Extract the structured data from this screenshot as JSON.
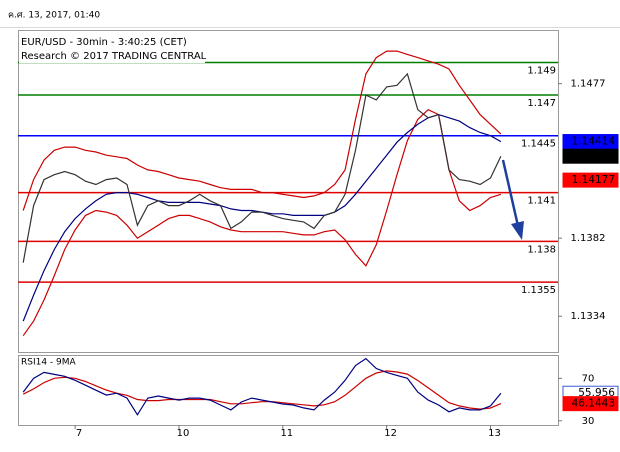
{
  "timestamp": "ค.ศ. 13, 2017, 01:40",
  "chart_data": [
    {
      "type": "line",
      "title": "EUR/USD - 30min - 3:40:25 (CET)",
      "subtitle": "Research © 2017 TRADING CENTRAL",
      "ylim": [
        1.1312,
        1.151
      ],
      "yticks": [
        1.1334,
        1.1382,
        1.1477
      ],
      "series": [
        {
          "color": "#cc0000",
          "values": [
            1.1399,
            1.1418,
            1.143,
            1.1436,
            1.1438,
            1.1438,
            1.1436,
            1.1435,
            1.1433,
            1.1432,
            1.1431,
            1.1427,
            1.1424,
            1.1423,
            1.1421,
            1.1419,
            1.1418,
            1.1417,
            1.1415,
            1.1413,
            1.1412,
            1.1412,
            1.1412,
            1.141,
            1.141,
            1.1409,
            1.1408,
            1.1407,
            1.1408,
            1.141,
            1.1415,
            1.1424,
            1.1455,
            1.1483,
            1.1493,
            1.1497,
            1.1497,
            1.1495,
            1.1493,
            1.1491,
            1.1489,
            1.1486,
            1.1476,
            1.1467,
            1.1458,
            1.1452,
            1.1446,
            null,
            null,
            null,
            null,
            null
          ]
        },
        {
          "color": "#cc0000",
          "values": [
            1.1322,
            1.1331,
            1.1344,
            1.1359,
            1.1375,
            1.1387,
            1.1396,
            1.1399,
            1.1398,
            1.1396,
            1.139,
            1.1382,
            1.1386,
            1.139,
            1.1394,
            1.1396,
            1.1396,
            1.1394,
            1.1392,
            1.1389,
            1.1387,
            1.1386,
            1.1386,
            1.1386,
            1.1386,
            1.1386,
            1.1385,
            1.1384,
            1.1384,
            1.1386,
            1.1387,
            1.1381,
            1.1372,
            1.1365,
            1.1378,
            1.1399,
            1.1421,
            1.1442,
            1.1455,
            1.1461,
            1.1458,
            1.1424,
            1.1405,
            1.1399,
            1.1402,
            1.1407,
            1.1409,
            null,
            null,
            null,
            null,
            null
          ]
        },
        {
          "color": "#000080",
          "values": [
            1.1331,
            1.1347,
            1.1362,
            1.1375,
            1.1386,
            1.1394,
            1.14,
            1.1405,
            1.1409,
            1.141,
            1.141,
            1.1409,
            1.1407,
            1.1405,
            1.1404,
            1.1404,
            1.1404,
            1.1404,
            1.1403,
            1.1402,
            1.14,
            1.1399,
            1.1399,
            1.1398,
            1.1397,
            1.1397,
            1.1396,
            1.1396,
            1.1396,
            1.1396,
            1.1398,
            1.1402,
            1.1409,
            1.1417,
            1.1425,
            1.1433,
            1.1441,
            1.1447,
            1.1452,
            1.1456,
            1.1458,
            1.1456,
            1.1454,
            1.145,
            1.1447,
            1.1445,
            1.14414,
            null,
            null,
            null,
            null,
            null
          ]
        },
        {
          "color": "#333333",
          "values": [
            1.1367,
            1.1402,
            1.1418,
            1.1421,
            1.1423,
            1.1421,
            1.1417,
            1.1415,
            1.1418,
            1.1419,
            1.1415,
            1.139,
            1.1402,
            1.1405,
            1.1402,
            1.1402,
            1.1405,
            1.1409,
            1.1405,
            1.1402,
            1.1388,
            1.1392,
            1.1398,
            1.1398,
            1.1396,
            1.1394,
            1.1393,
            1.1392,
            1.1388,
            1.1396,
            1.1398,
            1.1409,
            1.1436,
            1.147,
            1.1467,
            1.1475,
            1.1476,
            1.1483,
            1.1461,
            1.1456,
            1.1458,
            1.1424,
            1.1418,
            1.1417,
            1.1415,
            1.1419,
            1.14324,
            null,
            null,
            null,
            null,
            null
          ]
        }
      ],
      "levels": [
        {
          "value": 1.149,
          "color": "#008000"
        },
        {
          "value": 1.147,
          "color": "#008000"
        },
        {
          "value": 1.1445,
          "color": "#0000ff"
        },
        {
          "value": 1.141,
          "color": "#e00000"
        },
        {
          "value": 1.138,
          "color": "#e00000"
        },
        {
          "value": 1.1355,
          "color": "#e00000"
        }
      ],
      "tags": [
        {
          "value": 1.14414,
          "color": "#0000ff"
        },
        {
          "value": 1.14324,
          "color": "#000000"
        },
        {
          "value": 1.14177,
          "color": "#ff0000"
        }
      ]
    },
    {
      "type": "line",
      "title": "RSI14 - 9MA",
      "ylim": [
        26,
        92
      ],
      "yticks": [
        30,
        70
      ],
      "categories": [
        null,
        null,
        null,
        null,
        null,
        "7",
        null,
        null,
        null,
        null,
        null,
        null,
        null,
        null,
        null,
        "10",
        null,
        null,
        null,
        null,
        null,
        null,
        null,
        null,
        null,
        "11",
        null,
        null,
        null,
        null,
        null,
        null,
        null,
        null,
        null,
        "12",
        null,
        null,
        null,
        null,
        null,
        null,
        null,
        null,
        null,
        "13",
        null,
        null,
        null,
        null,
        null,
        null
      ],
      "series": [
        {
          "color": "#cc0000",
          "values": [
            55,
            60,
            66,
            70,
            71,
            70,
            67,
            63,
            59,
            56,
            54,
            50,
            49,
            49,
            50,
            50,
            50,
            50,
            50,
            48,
            46,
            46,
            47,
            48,
            48,
            47,
            46,
            45,
            44,
            45,
            48,
            54,
            62,
            70,
            75,
            77,
            76,
            74,
            68,
            61,
            54,
            47,
            44,
            42,
            41,
            42,
            46.1443,
            null,
            null,
            null,
            null,
            null
          ]
        },
        {
          "color": "#000080",
          "values": [
            57,
            70,
            75.6,
            73.7,
            71.9,
            68.1,
            63.5,
            58.8,
            54.2,
            56,
            51.4,
            35.6,
            51.4,
            53.3,
            51.4,
            49.5,
            51.4,
            51.4,
            49.5,
            44.9,
            40.2,
            47.7,
            51.4,
            49.5,
            47.7,
            45.8,
            44.9,
            42.1,
            40.2,
            49.5,
            57,
            68.1,
            82.1,
            88.6,
            79.3,
            75.6,
            72.8,
            70,
            57,
            49.5,
            44.9,
            38.4,
            42.1,
            40.2,
            40.2,
            44,
            55.956,
            null,
            null,
            null,
            null,
            null
          ]
        }
      ],
      "tags": [
        {
          "value": 55.956,
          "color": "#ffffff"
        },
        {
          "value": 46.1443,
          "color": "#ff0000"
        }
      ]
    }
  ]
}
